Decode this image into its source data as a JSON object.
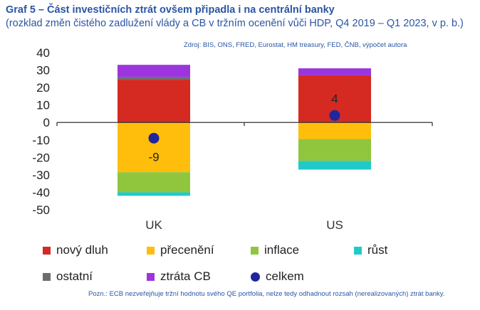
{
  "header": {
    "title": "Graf 5 – Část investičních ztrát ovšem připadla i na centrální banky",
    "subtitle": "(rozklad změn čistého zadlužení vlády a CB v tržním ocenění vůči HDP, Q4 2019 – Q1 2023, v p. b.)",
    "source": "Zdroj: BIS, ONS, FRED, Eurostat, HM treasury, FED, ČNB, výpočet autora"
  },
  "note": "Pozn.: ECB nezveřejňuje tržní hodnotu svého QE portfolia, nelze tedy odhadnout rozsah (nerealizovaných) ztrát banky.",
  "chart_data": {
    "type": "bar",
    "stacked": true,
    "categories": [
      "UK",
      "US"
    ],
    "series": [
      {
        "name": "nový dluh",
        "color": "#d42a22",
        "values": [
          24.5,
          27
        ]
      },
      {
        "name": "přecenění",
        "color": "#ffbe0c",
        "values": [
          -28.5,
          -9.5
        ]
      },
      {
        "name": "inflace",
        "color": "#90c63e",
        "values": [
          -11.5,
          -12.5
        ]
      },
      {
        "name": "růst",
        "color": "#22c9c9",
        "values": [
          -2,
          -5
        ]
      },
      {
        "name": "ostatní",
        "color": "#6d6d6d",
        "values": [
          1.5,
          0
        ]
      },
      {
        "name": "ztráta CB",
        "color": "#9c35dd",
        "values": [
          7,
          4
        ]
      }
    ],
    "total": {
      "name": "celkem",
      "color": "#21259e",
      "values": [
        -9,
        4
      ],
      "labels": [
        "-9",
        "4"
      ]
    },
    "ylim": [
      -50,
      40
    ],
    "yticks": [
      40,
      30,
      20,
      10,
      0,
      -10,
      -20,
      -30,
      -40,
      -50
    ],
    "legend_position": "bottom"
  }
}
